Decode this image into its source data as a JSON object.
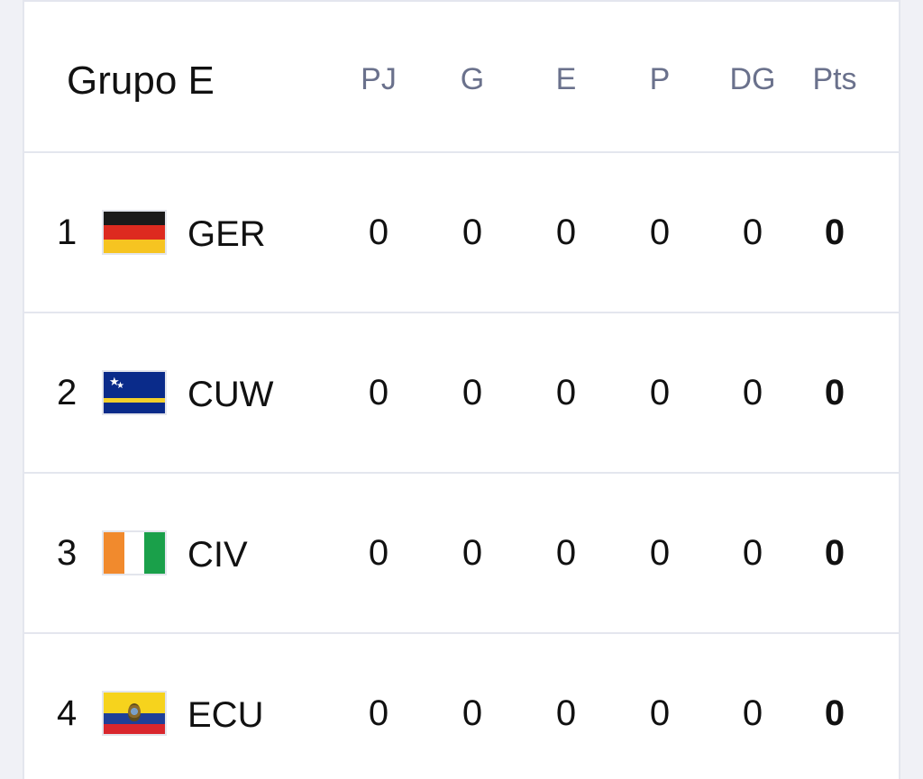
{
  "group": {
    "title": "Grupo E"
  },
  "columns": [
    "PJ",
    "G",
    "E",
    "P",
    "DG",
    "Pts"
  ],
  "teams": [
    {
      "rank": "1",
      "code": "GER",
      "flag": "germany-flag-icon",
      "pj": "0",
      "g": "0",
      "e": "0",
      "p": "0",
      "dg": "0",
      "pts": "0"
    },
    {
      "rank": "2",
      "code": "CUW",
      "flag": "curacao-flag-icon",
      "pj": "0",
      "g": "0",
      "e": "0",
      "p": "0",
      "dg": "0",
      "pts": "0"
    },
    {
      "rank": "3",
      "code": "CIV",
      "flag": "ivory-coast-flag-icon",
      "pj": "0",
      "g": "0",
      "e": "0",
      "p": "0",
      "dg": "0",
      "pts": "0"
    },
    {
      "rank": "4",
      "code": "ECU",
      "flag": "ecuador-flag-icon",
      "pj": "0",
      "g": "0",
      "e": "0",
      "p": "0",
      "dg": "0",
      "pts": "0"
    }
  ],
  "colors": {
    "header_text": "#6a718c",
    "divider": "#e4e6ee",
    "germany": [
      "#1a1a1a",
      "#dd2a1f",
      "#f6c421"
    ],
    "ivory_coast": [
      "#f18a2d",
      "#ffffff",
      "#1aa04a"
    ]
  }
}
